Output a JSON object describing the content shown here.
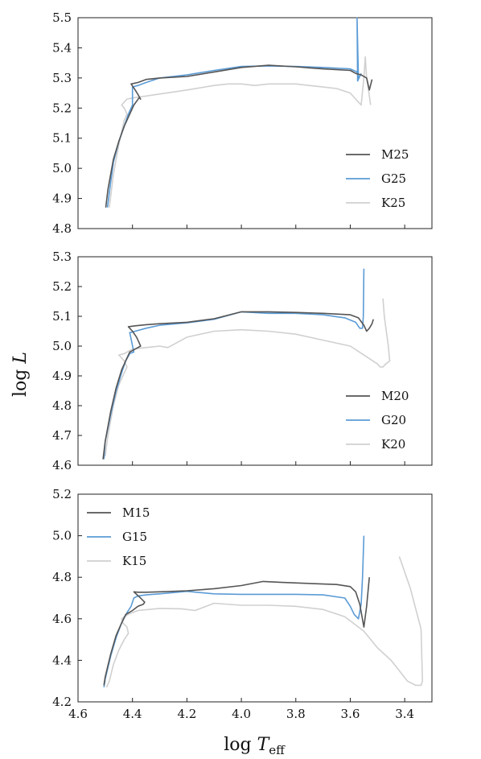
{
  "chart_data": {
    "type": "line",
    "xlabel": "log T_eff",
    "ylabel": "log L",
    "x_axis_inverted": true,
    "grid": false,
    "xlim": [
      4.6,
      3.3
    ],
    "xticks": [
      "4.6",
      "4.4",
      "4.2",
      "4.0",
      "3.8",
      "3.6",
      "3.4"
    ],
    "colors": {
      "M": "#555555",
      "G": "#5b9bd5",
      "K": "#d0d0d0"
    },
    "panels": [
      {
        "ylim": [
          4.8,
          5.5
        ],
        "yticks": [
          "4.8",
          "4.9",
          "5.0",
          "5.1",
          "5.2",
          "5.3",
          "5.4",
          "5.5"
        ],
        "legend_position": "lower-right",
        "series": [
          {
            "name": "M25",
            "color": "#555555",
            "x": [
              4.498,
              4.49,
              4.47,
              4.45,
              4.43,
              4.41,
              4.395,
              4.375,
              4.37,
              4.38,
              4.39,
              4.405,
              4.38,
              4.35,
              4.3,
              4.2,
              4.1,
              4.0,
              3.9,
              3.8,
              3.7,
              3.6,
              3.58,
              3.56,
              3.54,
              3.53,
              3.52
            ],
            "y": [
              4.87,
              4.93,
              5.03,
              5.09,
              5.14,
              5.18,
              5.21,
              5.235,
              5.23,
              5.245,
              5.26,
              5.28,
              5.285,
              5.295,
              5.3,
              5.305,
              5.32,
              5.335,
              5.342,
              5.337,
              5.33,
              5.325,
              5.315,
              5.31,
              5.3,
              5.26,
              5.295
            ]
          },
          {
            "name": "G25",
            "color": "#5b9bd5",
            "x": [
              4.492,
              4.485,
              4.47,
              4.45,
              4.43,
              4.415,
              4.4,
              4.4,
              4.38,
              4.35,
              4.3,
              4.2,
              4.1,
              4.0,
              3.9,
              3.8,
              3.7,
              3.6,
              3.575,
              3.57,
              3.575,
              3.573,
              3.56
            ],
            "y": [
              4.87,
              4.92,
              5.02,
              5.09,
              5.14,
              5.18,
              5.21,
              5.27,
              5.275,
              5.285,
              5.3,
              5.31,
              5.325,
              5.338,
              5.34,
              5.338,
              5.335,
              5.33,
              5.32,
              5.3,
              5.5,
              5.29,
              5.315
            ]
          },
          {
            "name": "K25",
            "color": "#d0d0d0",
            "x": [
              4.485,
              4.47,
              4.45,
              4.43,
              4.42,
              4.43,
              4.44,
              4.42,
              4.39,
              4.35,
              4.2,
              4.1,
              4.05,
              4.0,
              3.95,
              3.9,
              3.8,
              3.7,
              3.65,
              3.6,
              3.58,
              3.56,
              3.55,
              3.545,
              3.54,
              3.53,
              3.525
            ],
            "y": [
              4.87,
              4.98,
              5.08,
              5.16,
              5.18,
              5.2,
              5.21,
              5.23,
              5.235,
              5.24,
              5.26,
              5.275,
              5.28,
              5.28,
              5.275,
              5.28,
              5.28,
              5.27,
              5.265,
              5.25,
              5.23,
              5.21,
              5.3,
              5.37,
              5.3,
              5.24,
              5.21
            ]
          }
        ]
      },
      {
        "ylim": [
          4.6,
          5.3
        ],
        "yticks": [
          "4.6",
          "4.7",
          "4.8",
          "4.9",
          "5.0",
          "5.1",
          "5.2",
          "5.3"
        ],
        "legend_position": "lower-right",
        "series": [
          {
            "name": "M20",
            "color": "#555555",
            "x": [
              4.508,
              4.5,
              4.48,
              4.46,
              4.44,
              4.425,
              4.41,
              4.39,
              4.37,
              4.375,
              4.385,
              4.4,
              4.415,
              4.39,
              4.35,
              4.3,
              4.2,
              4.1,
              4.0,
              3.9,
              3.8,
              3.7,
              3.6,
              3.57,
              3.55,
              3.54,
              3.53,
              3.52,
              3.515
            ],
            "y": [
              4.62,
              4.68,
              4.78,
              4.86,
              4.92,
              4.95,
              4.98,
              4.99,
              5.0,
              5.01,
              5.03,
              5.05,
              5.065,
              5.068,
              5.072,
              5.075,
              5.08,
              5.092,
              5.115,
              5.115,
              5.113,
              5.11,
              5.105,
              5.095,
              5.07,
              5.05,
              5.06,
              5.075,
              5.09
            ]
          },
          {
            "name": "G20",
            "color": "#5b9bd5",
            "x": [
              4.505,
              4.5,
              4.48,
              4.46,
              4.44,
              4.425,
              4.41,
              4.395,
              4.41,
              4.39,
              4.35,
              4.3,
              4.2,
              4.1,
              4.0,
              3.9,
              3.8,
              3.7,
              3.62,
              3.58,
              3.565,
              3.555,
              3.552,
              3.55
            ],
            "y": [
              4.62,
              4.68,
              4.77,
              4.85,
              4.91,
              4.95,
              4.975,
              4.98,
              5.045,
              5.05,
              5.06,
              5.07,
              5.078,
              5.09,
              5.115,
              5.11,
              5.11,
              5.105,
              5.095,
              5.08,
              5.06,
              5.06,
              5.1,
              5.26
            ]
          },
          {
            "name": "K20",
            "color": "#d0d0d0",
            "x": [
              4.5,
              4.49,
              4.47,
              4.45,
              4.43,
              4.42,
              4.43,
              4.45,
              4.43,
              4.4,
              4.35,
              4.3,
              4.27,
              4.2,
              4.1,
              4.0,
              3.9,
              3.8,
              3.7,
              3.6,
              3.55,
              3.5,
              3.49,
              3.48,
              3.47,
              3.455,
              3.46,
              3.475,
              3.48
            ],
            "y": [
              4.63,
              4.7,
              4.8,
              4.87,
              4.91,
              4.93,
              4.95,
              4.97,
              4.975,
              4.99,
              4.995,
              5.0,
              4.995,
              5.03,
              5.05,
              5.055,
              5.05,
              5.04,
              5.02,
              5.0,
              4.97,
              4.94,
              4.93,
              4.93,
              4.94,
              4.95,
              5.0,
              5.1,
              5.16
            ]
          }
        ]
      },
      {
        "ylim": [
          4.2,
          5.2
        ],
        "yticks": [
          "4.2",
          "4.4",
          "4.6",
          "4.8",
          "5.0",
          "5.2"
        ],
        "legend_position": "upper-left",
        "series": [
          {
            "name": "M15",
            "color": "#555555",
            "x": [
              4.505,
              4.5,
              4.48,
              4.46,
              4.44,
              4.425,
              4.4,
              4.38,
              4.36,
              4.355,
              4.37,
              4.395,
              4.38,
              4.35,
              4.3,
              4.2,
              4.1,
              4.0,
              3.92,
              3.85,
              3.75,
              3.65,
              3.6,
              3.58,
              3.565,
              3.55,
              3.54,
              3.53
            ],
            "y": [
              4.28,
              4.32,
              4.43,
              4.52,
              4.58,
              4.62,
              4.64,
              4.66,
              4.67,
              4.68,
              4.7,
              4.73,
              4.728,
              4.728,
              4.73,
              4.735,
              4.745,
              4.76,
              4.78,
              4.775,
              4.77,
              4.765,
              4.755,
              4.73,
              4.67,
              4.56,
              4.66,
              4.8
            ]
          },
          {
            "name": "G15",
            "color": "#5b9bd5",
            "x": [
              4.505,
              4.5,
              4.48,
              4.46,
              4.44,
              4.42,
              4.405,
              4.395,
              4.38,
              4.35,
              4.3,
              4.2,
              4.1,
              4.0,
              3.9,
              3.8,
              3.7,
              3.62,
              3.6,
              3.585,
              3.57,
              3.56,
              3.555,
              3.55
            ],
            "y": [
              4.27,
              4.31,
              4.42,
              4.51,
              4.58,
              4.63,
              4.66,
              4.7,
              4.71,
              4.715,
              4.72,
              4.732,
              4.72,
              4.718,
              4.718,
              4.718,
              4.715,
              4.7,
              4.66,
              4.62,
              4.6,
              4.67,
              4.8,
              5.0
            ]
          },
          {
            "name": "K15",
            "color": "#d0d0d0",
            "x": [
              4.495,
              4.485,
              4.47,
              4.45,
              4.43,
              4.415,
              4.42,
              4.435,
              4.44,
              4.43,
              4.41,
              4.38,
              4.3,
              4.22,
              4.17,
              4.1,
              4.0,
              3.9,
              3.8,
              3.7,
              3.62,
              3.55,
              3.5,
              3.45,
              3.42,
              3.39,
              3.36,
              3.34,
              3.335,
              3.34,
              3.38,
              3.42
            ],
            "y": [
              4.27,
              4.3,
              4.38,
              4.45,
              4.5,
              4.53,
              4.56,
              4.58,
              4.6,
              4.61,
              4.625,
              4.64,
              4.65,
              4.648,
              4.64,
              4.675,
              4.665,
              4.665,
              4.66,
              4.645,
              4.61,
              4.54,
              4.46,
              4.4,
              4.35,
              4.3,
              4.28,
              4.28,
              4.3,
              4.55,
              4.75,
              4.9
            ]
          }
        ]
      }
    ]
  }
}
